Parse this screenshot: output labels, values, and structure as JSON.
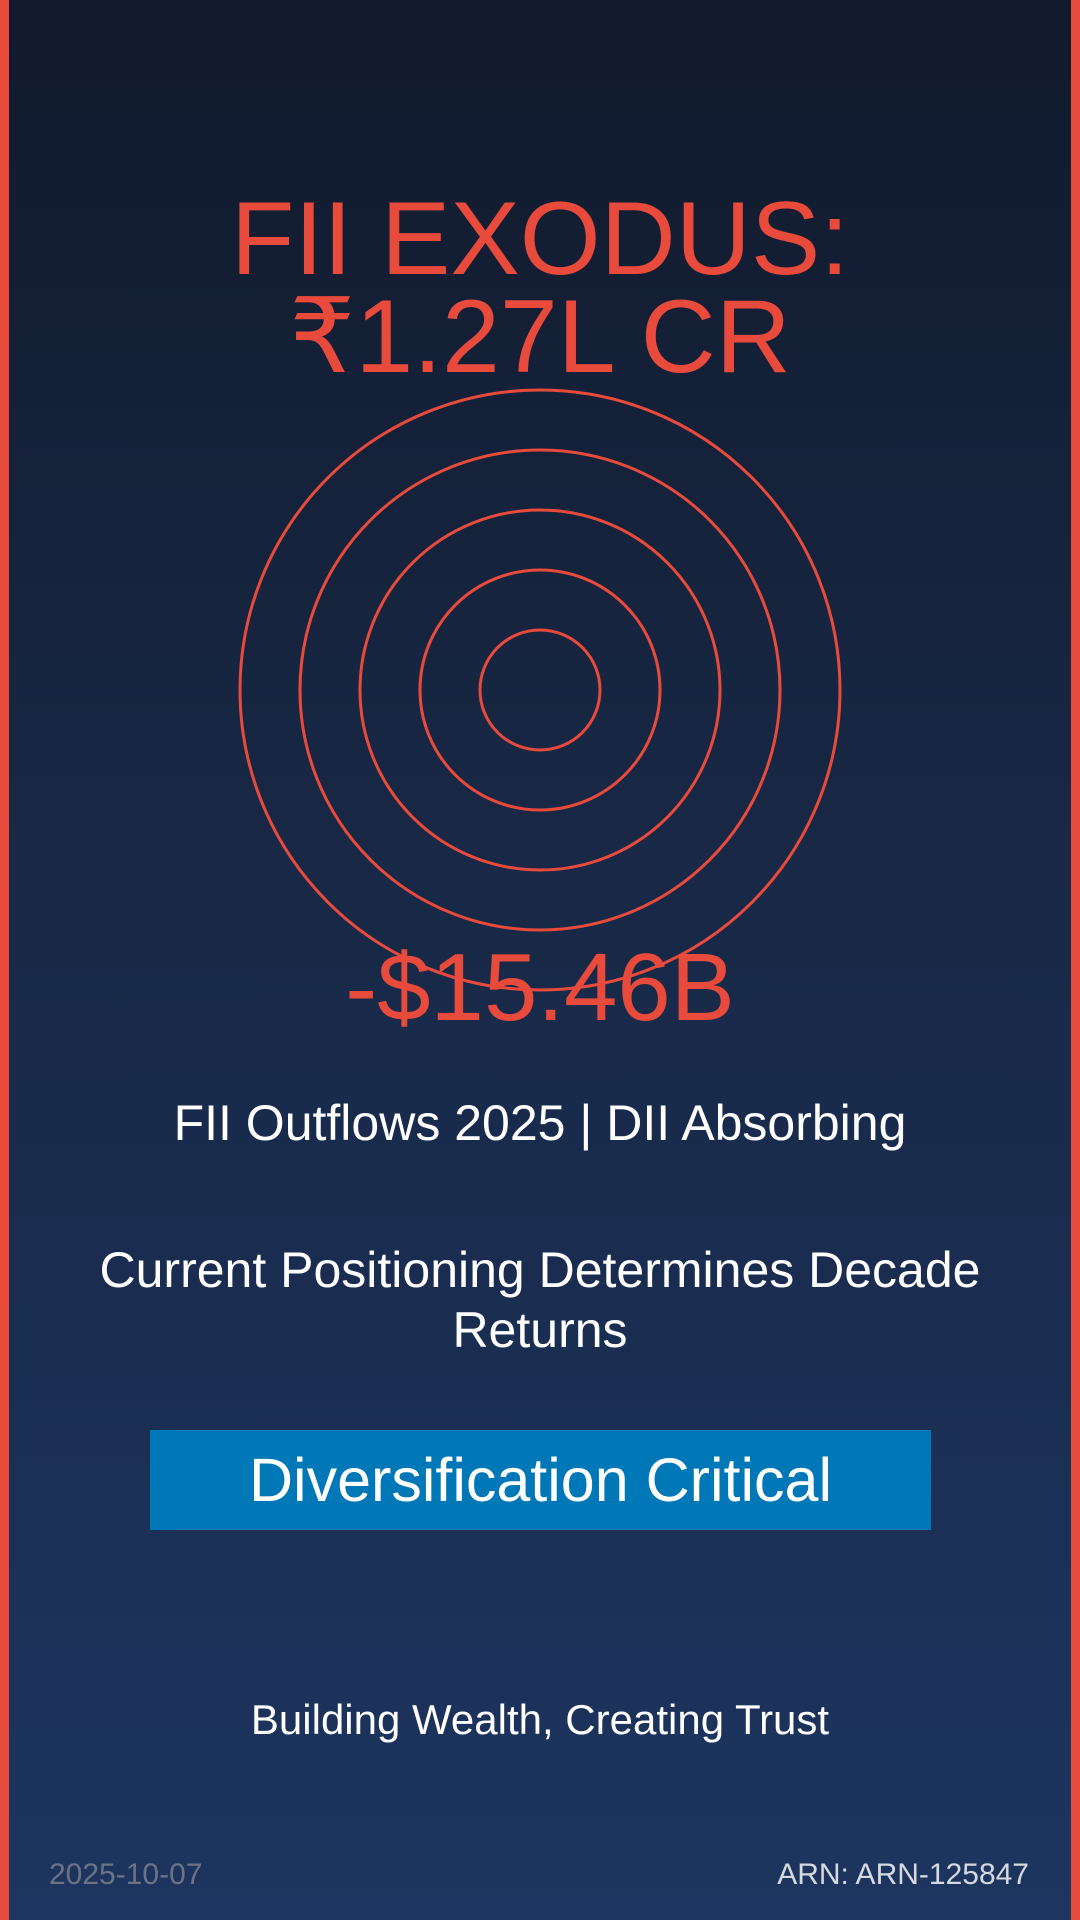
{
  "headline": {
    "line1": "FII EXODUS:",
    "line2": "₹1.27L CR"
  },
  "amount": "-$15.46B",
  "subtitle": "FII Outflows 2025 | DII Absorbing",
  "statement": "Current Positioning Determines Decade Returns",
  "cta_label": "Diversification Critical",
  "tagline": "Building Wealth, Creating Trust",
  "footer": {
    "date": "2025-10-07",
    "arn": "ARN: ARN-125847"
  },
  "colors": {
    "accent": "#e84a3b",
    "button": "#0077b6",
    "text": "#ffffff"
  }
}
